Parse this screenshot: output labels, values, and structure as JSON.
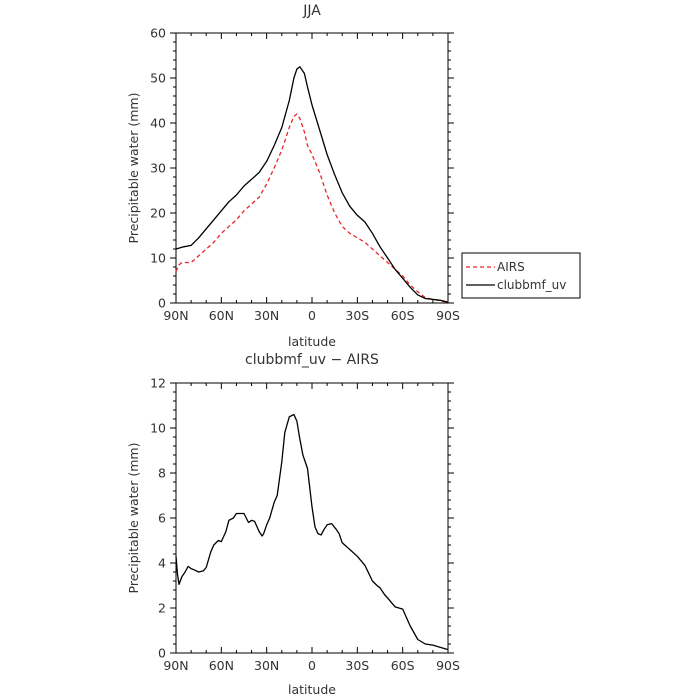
{
  "chart_data": [
    {
      "type": "line",
      "title": "JJA",
      "xlabel": "latitude",
      "ylabel": "Precipitable water (mm)",
      "xlim": [
        90,
        -90
      ],
      "ylim": [
        0,
        60
      ],
      "x_ticks": [
        90,
        60,
        30,
        0,
        -30,
        -60,
        -90
      ],
      "x_tick_labels": [
        "90N",
        "60N",
        "30N",
        "0",
        "30S",
        "60S",
        "90S"
      ],
      "y_ticks": [
        0,
        10,
        20,
        30,
        40,
        50,
        60
      ],
      "y_tick_labels": [
        "0",
        "10",
        "20",
        "30",
        "40",
        "50",
        "60"
      ],
      "legend_position": "right",
      "series": [
        {
          "name": "AIRS",
          "color": "#e8262a",
          "dash": "dashed",
          "x": [
            90,
            88,
            86,
            82,
            80,
            75,
            70,
            65,
            60,
            55,
            50,
            45,
            40,
            35,
            30,
            25,
            20,
            15,
            12,
            10,
            8,
            5,
            3,
            0,
            -5,
            -10,
            -15,
            -20,
            -25,
            -30,
            -35,
            -40,
            -45,
            -50,
            -55,
            -60,
            -65,
            -70,
            -75,
            -80,
            -85,
            -90
          ],
          "values": [
            7.0,
            8.5,
            9.0,
            9.0,
            9.0,
            10.5,
            12,
            13.5,
            15.5,
            17,
            18.5,
            20.5,
            22,
            23.5,
            26.5,
            30,
            34,
            39,
            41.5,
            42,
            41,
            38,
            35,
            33,
            29,
            24,
            20,
            17,
            15.5,
            14.5,
            13.5,
            12,
            10.5,
            9,
            7.5,
            6,
            4,
            2.5,
            1.2,
            0.8,
            0.5,
            0.1
          ]
        },
        {
          "name": "clubbmf_uv",
          "color": "#000000",
          "dash": "solid",
          "x": [
            90,
            88,
            85,
            80,
            75,
            70,
            65,
            60,
            55,
            50,
            45,
            40,
            35,
            30,
            25,
            20,
            15,
            12,
            10,
            8,
            5,
            3,
            0,
            -5,
            -10,
            -15,
            -20,
            -25,
            -30,
            -35,
            -40,
            -45,
            -50,
            -55,
            -60,
            -65,
            -70,
            -75,
            -80,
            -85,
            -90
          ],
          "values": [
            12,
            12.2,
            12.5,
            12.8,
            14.5,
            16.5,
            18.5,
            20.5,
            22.5,
            24,
            26,
            27.5,
            29,
            31.5,
            35,
            39,
            45,
            50,
            52,
            52.5,
            51,
            48,
            44,
            38.5,
            33,
            28.5,
            24.5,
            21.5,
            19.5,
            18,
            15.5,
            12.5,
            10,
            7.5,
            5.5,
            3.5,
            1.8,
            1.0,
            0.8,
            0.6,
            0.2
          ]
        }
      ]
    },
    {
      "type": "line",
      "title": "clubbmf_uv − AIRS",
      "xlabel": "latitude",
      "ylabel": "Precipitable water (mm)",
      "xlim": [
        90,
        -90
      ],
      "ylim": [
        0,
        12
      ],
      "x_ticks": [
        90,
        60,
        30,
        0,
        -30,
        -60,
        -90
      ],
      "x_tick_labels": [
        "90N",
        "60N",
        "30N",
        "0",
        "30S",
        "60S",
        "90S"
      ],
      "y_ticks": [
        0,
        2,
        4,
        6,
        8,
        10,
        12
      ],
      "y_tick_labels": [
        "0",
        "2",
        "4",
        "6",
        "8",
        "10",
        "12"
      ],
      "series": [
        {
          "name": "",
          "color": "#000000",
          "dash": "solid",
          "x": [
            90,
            89,
            88,
            86,
            84,
            82,
            80,
            78,
            75,
            72,
            70,
            67,
            65,
            62,
            60,
            57,
            55,
            52,
            50,
            48,
            45,
            42,
            40,
            38,
            35,
            33,
            32,
            30,
            28,
            25,
            23,
            20,
            18,
            15,
            12,
            10,
            8,
            6,
            3,
            0,
            -2,
            -4,
            -6,
            -8,
            -10,
            -13,
            -16,
            -18,
            -20,
            -25,
            -30,
            -35,
            -40,
            -43,
            -45,
            -48,
            -50,
            -55,
            -60,
            -63,
            -65,
            -70,
            -75,
            -80,
            -85,
            -90
          ],
          "values": [
            4.3,
            3.5,
            3.05,
            3.4,
            3.6,
            3.85,
            3.75,
            3.7,
            3.6,
            3.65,
            3.8,
            4.5,
            4.8,
            5.0,
            4.95,
            5.4,
            5.9,
            6.0,
            6.2,
            6.2,
            6.2,
            5.8,
            5.9,
            5.85,
            5.4,
            5.2,
            5.3,
            5.7,
            6.0,
            6.7,
            7.0,
            8.5,
            9.8,
            10.5,
            10.6,
            10.3,
            9.5,
            8.8,
            8.2,
            6.5,
            5.6,
            5.3,
            5.25,
            5.5,
            5.7,
            5.75,
            5.5,
            5.3,
            4.9,
            4.6,
            4.3,
            3.9,
            3.2,
            3.0,
            2.9,
            2.6,
            2.45,
            2.05,
            1.95,
            1.5,
            1.2,
            0.6,
            0.4,
            0.35,
            0.25,
            0.15
          ]
        }
      ]
    }
  ]
}
